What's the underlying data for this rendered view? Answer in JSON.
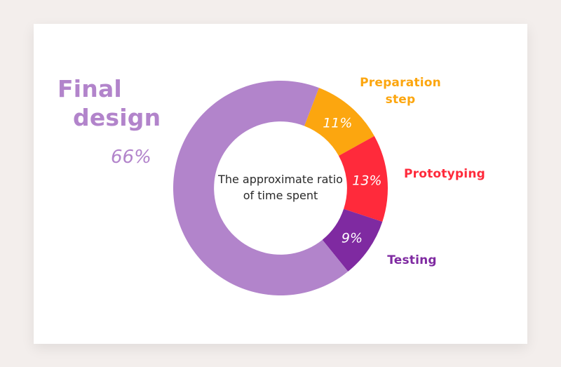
{
  "chart_data": {
    "type": "pie",
    "title": "The approximate ratio of time spent",
    "hole": 0.62,
    "slices": [
      {
        "name": "Preparation step",
        "value": 11,
        "label": "11%",
        "color": "#fca60f"
      },
      {
        "name": "Prototyping",
        "value": 13,
        "label": "13%",
        "color": "#ff2a3b"
      },
      {
        "name": "Testing",
        "value": 9,
        "label": "9%",
        "color": "#7f2aa1"
      },
      {
        "name": "Final design",
        "value": 66,
        "label": "66%",
        "color": "#b284cb"
      }
    ]
  },
  "labels": {
    "final_line1": "Final",
    "final_line2": "design",
    "final_pct": "66%",
    "prep_line1": "Preparation",
    "prep_line2": "step",
    "proto": "Prototyping",
    "test": "Testing",
    "center_line1": "The approximate ratio",
    "center_line2": "of time spent"
  }
}
